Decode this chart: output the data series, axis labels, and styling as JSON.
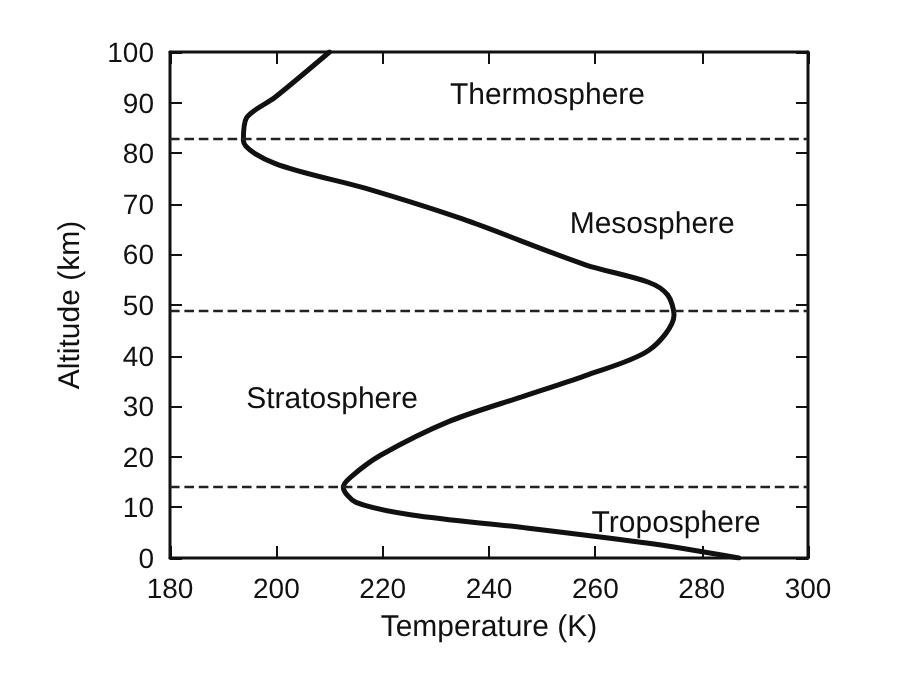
{
  "chart_data": {
    "type": "line",
    "xlabel": "Temperature (K)",
    "ylabel": "Altitude (km)",
    "x": [
      287,
      270,
      246.6,
      225.5,
      215,
      212.6,
      214,
      219.6,
      232.5,
      246.6,
      258,
      270,
      274.8,
      273.6,
      270,
      258,
      235,
      217,
      199.7,
      193.8,
      194.4,
      199.7,
      210
    ],
    "series": [
      {
        "color": "#111111",
        "values": [
          0,
          2.9,
          6,
          8.5,
          11,
          14,
          16,
          20.3,
          27,
          32,
          36,
          41,
          48,
          52,
          54.5,
          58,
          67,
          73,
          78,
          82.5,
          87,
          91,
          100
        ]
      }
    ],
    "xlim": [
      180,
      300
    ],
    "xticks": [
      180,
      200,
      220,
      240,
      260,
      280,
      300
    ],
    "ylim": [
      0,
      100
    ],
    "yticks": [
      0,
      10,
      20,
      30,
      40,
      50,
      60,
      70,
      80,
      90,
      100
    ],
    "grid": false,
    "marker": "none",
    "line_style": "solid",
    "ref_lines": [
      {
        "axis": "y",
        "value": 83,
        "color": "#222222",
        "line_style": "dashed"
      },
      {
        "axis": "y",
        "value": 49,
        "color": "#222222",
        "line_style": "dashed"
      },
      {
        "axis": "y",
        "value": 14,
        "color": "#222222",
        "line_style": "dashed"
      }
    ],
    "annotations": [
      "Thermosphere",
      "Mesosphere",
      "Stratosphere",
      "Troposphere"
    ]
  }
}
